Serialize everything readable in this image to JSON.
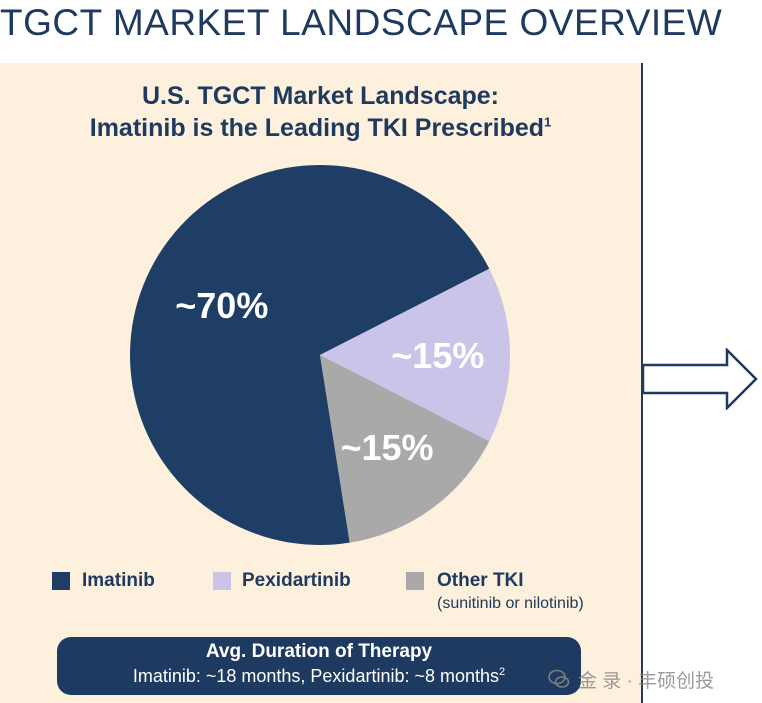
{
  "header": {
    "title": "TGCT MARKET LANDSCAPE OVERVIEW"
  },
  "chart_data": {
    "type": "pie",
    "title": "U.S. TGCT Market Landscape:",
    "subtitle": "Imatinib is the Leading TKI Prescribed",
    "subtitle_footnote": "1",
    "categories": [
      "Imatinib",
      "Pexidartinib",
      "Other TKI"
    ],
    "values": [
      70,
      15,
      15
    ],
    "labels": [
      "~70%",
      "~15%",
      "~15%"
    ],
    "colors": [
      "#1f3e66",
      "#c9c4e8",
      "#a9a9a9"
    ],
    "label_colors": [
      "#ffffff",
      "#ffffff",
      "#ffffff"
    ],
    "legend": [
      {
        "label": "Imatinib",
        "note": ""
      },
      {
        "label": "Pexidartinib",
        "note": ""
      },
      {
        "label": "Other TKI",
        "note": "(sunitinib or nilotinib)"
      }
    ],
    "legend_position": "bottom"
  },
  "therapy": {
    "title": "Avg. Duration of Therapy",
    "detail": "Imatinib:  ~18 months, Pexidartinib: ~8 months",
    "footnote": "2"
  },
  "watermark": {
    "text": "金 录 · 丰硕创投",
    "icon": "wechat-icon"
  },
  "arrow": {
    "icon": "right-arrow-icon"
  }
}
